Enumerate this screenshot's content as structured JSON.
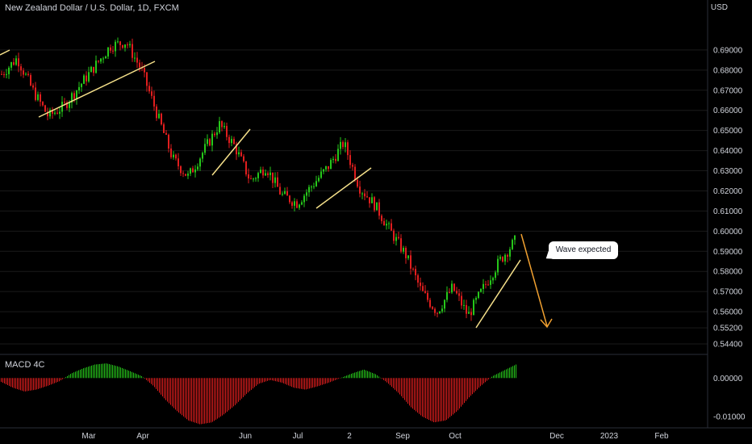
{
  "header": {
    "title": "New Zealand Dollar / U.S. Dollar, 1D, FXCM",
    "currency": "USD",
    "indicator": "MACD 4C"
  },
  "annotation": {
    "text": "Wave expected"
  },
  "colors": {
    "background": "#000000",
    "up": "#26c71a",
    "down": "#e01e1e",
    "trendline": "#f5e08a",
    "arrow": "#f0a030",
    "grid": "#1a1a1a",
    "axis_text": "#d1d4dc"
  },
  "chart_data": [
    {
      "type": "candlestick",
      "title": "New Zealand Dollar / U.S. Dollar, 1D, FXCM",
      "ylabel": "USD",
      "y_ticks": [
        "0.69000",
        "0.68000",
        "0.67000",
        "0.66000",
        "0.65000",
        "0.64000",
        "0.63000",
        "0.62000",
        "0.61000",
        "0.60000",
        "0.59000",
        "0.58000",
        "0.57000",
        "0.56000",
        "0.55200",
        "0.54400"
      ],
      "x_ticks": [
        "Mar",
        "Apr",
        "Jun",
        "Jul",
        "2",
        "Sep",
        "Oct",
        "Dec",
        "2023",
        "Feb"
      ],
      "ylim": [
        0.54,
        0.71
      ],
      "close_path": [
        [
          "Feb",
          0.678
        ],
        [
          "Feb",
          0.686
        ],
        [
          "Feb",
          0.67
        ],
        [
          "Mar",
          0.657
        ],
        [
          "Mar",
          0.662
        ],
        [
          "Mar",
          0.672
        ],
        [
          "Mar",
          0.682
        ],
        [
          "Apr",
          0.692
        ],
        [
          "Apr",
          0.694
        ],
        [
          "Apr",
          0.68
        ],
        [
          "Apr",
          0.658
        ],
        [
          "Apr",
          0.636
        ],
        [
          "May",
          0.627
        ],
        [
          "May",
          0.64
        ],
        [
          "Jun",
          0.653
        ],
        [
          "Jun",
          0.642
        ],
        [
          "Jun",
          0.625
        ],
        [
          "Jun",
          0.632
        ],
        [
          "Jul",
          0.618
        ],
        [
          "Jul",
          0.614
        ],
        [
          "Jul",
          0.623
        ],
        [
          "Aug",
          0.632
        ],
        [
          "Aug",
          0.644
        ],
        [
          "Aug",
          0.622
        ],
        [
          "Aug",
          0.613
        ],
        [
          "Sep",
          0.6
        ],
        [
          "Sep",
          0.588
        ],
        [
          "Sep",
          0.57
        ],
        [
          "Sep",
          0.56
        ],
        [
          "Oct",
          0.572
        ],
        [
          "Oct",
          0.558
        ],
        [
          "Oct",
          0.572
        ],
        [
          "Oct",
          0.585
        ],
        [
          "Nov",
          0.595
        ]
      ],
      "annotations": [
        "Wave expected"
      ]
    },
    {
      "type": "bar",
      "title": "MACD 4C",
      "y_ticks": [
        "0.00000",
        "-0.01000"
      ],
      "ylim": [
        -0.0125,
        0.0055
      ],
      "series": [
        {
          "name": "MACD 4C",
          "values": [
            -0.001,
            -0.0025,
            -0.0035,
            -0.003,
            -0.002,
            -0.0008,
            0.0012,
            0.0025,
            0.0035,
            0.0038,
            0.003,
            0.0018,
            0.0005,
            -0.002,
            -0.0055,
            -0.0085,
            -0.011,
            -0.012,
            -0.0115,
            -0.0095,
            -0.007,
            -0.004,
            -0.0015,
            -0.0005,
            -0.0012,
            -0.0025,
            -0.003,
            -0.0022,
            -0.0012,
            0.0,
            0.0012,
            0.0022,
            0.001,
            -0.0012,
            -0.004,
            -0.0075,
            -0.01,
            -0.0115,
            -0.011,
            -0.0085,
            -0.005,
            -0.002,
            0.0005,
            0.002,
            0.0035
          ]
        }
      ]
    }
  ]
}
